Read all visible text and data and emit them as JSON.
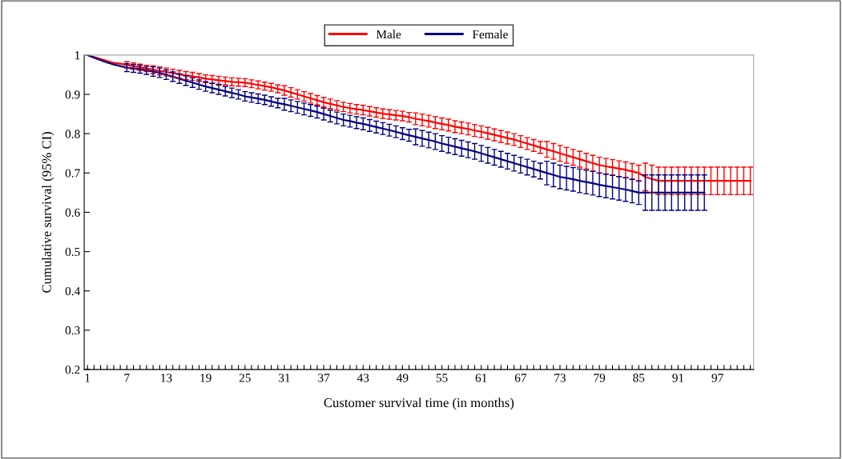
{
  "chart_data": {
    "type": "line",
    "xlabel": "Customer survival time (in months)",
    "ylabel": "Cumulative survival (95% CI)",
    "categories": [
      "1",
      null,
      null,
      null,
      null,
      null,
      "7",
      null,
      null,
      null,
      null,
      null,
      "13",
      null,
      null,
      null,
      null,
      null,
      "19",
      null,
      null,
      null,
      null,
      null,
      "25",
      null,
      null,
      null,
      null,
      null,
      "31",
      null,
      null,
      null,
      null,
      null,
      "37",
      null,
      null,
      null,
      null,
      null,
      "43",
      null,
      null,
      null,
      null,
      null,
      "49",
      null,
      null,
      null,
      null,
      null,
      "55",
      null,
      null,
      null,
      null,
      null,
      "61",
      null,
      null,
      null,
      null,
      null,
      "67",
      null,
      null,
      null,
      null,
      null,
      "73",
      null,
      null,
      null,
      null,
      null,
      "79",
      null,
      null,
      null,
      null,
      null,
      "85",
      null,
      null,
      null,
      null,
      null,
      "91",
      null,
      null,
      null,
      null,
      null,
      "97",
      null,
      null,
      null,
      null,
      null
    ],
    "series": [
      {
        "name": "Male",
        "color": "#ff0000",
        "values": [
          1.0,
          0.995,
          0.99,
          0.985,
          0.98,
          0.978,
          0.975,
          0.972,
          0.969,
          0.966,
          0.963,
          0.96,
          0.957,
          0.954,
          0.951,
          0.948,
          0.946,
          0.943,
          0.94,
          0.938,
          0.936,
          0.934,
          0.932,
          0.931,
          0.93,
          0.927,
          0.924,
          0.921,
          0.918,
          0.914,
          0.91,
          0.905,
          0.9,
          0.895,
          0.89,
          0.885,
          0.88,
          0.876,
          0.872,
          0.868,
          0.865,
          0.862,
          0.86,
          0.857,
          0.854,
          0.851,
          0.849,
          0.847,
          0.845,
          0.842,
          0.838,
          0.835,
          0.832,
          0.828,
          0.825,
          0.822,
          0.818,
          0.815,
          0.812,
          0.808,
          0.805,
          0.801,
          0.797,
          0.793,
          0.789,
          0.785,
          0.78,
          0.775,
          0.77,
          0.765,
          0.76,
          0.755,
          0.75,
          0.745,
          0.74,
          0.735,
          0.73,
          0.725,
          0.72,
          0.717,
          0.714,
          0.711,
          0.708,
          0.704,
          0.7,
          0.69,
          0.685,
          0.68,
          0.68,
          0.68,
          0.68,
          0.68,
          0.68,
          0.68,
          0.68,
          0.68,
          0.68,
          0.68,
          0.68,
          0.68,
          0.68,
          0.68
        ],
        "errors": [
          null,
          null,
          null,
          null,
          null,
          null,
          0.008,
          0.008,
          0.008,
          0.008,
          0.01,
          0.01,
          0.01,
          0.01,
          0.01,
          0.01,
          0.01,
          0.01,
          0.01,
          0.01,
          0.01,
          0.01,
          0.01,
          0.01,
          0.01,
          0.01,
          0.01,
          0.01,
          0.01,
          0.01,
          0.012,
          0.012,
          0.012,
          0.012,
          0.012,
          0.012,
          0.012,
          0.012,
          0.012,
          0.012,
          0.012,
          0.012,
          0.012,
          0.012,
          0.012,
          0.012,
          0.012,
          0.012,
          0.012,
          0.012,
          0.015,
          0.015,
          0.015,
          0.015,
          0.015,
          0.015,
          0.015,
          0.015,
          0.015,
          0.015,
          0.015,
          0.015,
          0.015,
          0.015,
          0.015,
          0.015,
          0.015,
          0.015,
          0.015,
          0.015,
          0.02,
          0.02,
          0.02,
          0.02,
          0.02,
          0.02,
          0.02,
          0.02,
          0.02,
          0.02,
          0.02,
          0.02,
          0.02,
          0.02,
          0.02,
          0.035,
          0.035,
          0.035,
          0.035,
          0.035,
          0.035,
          0.035,
          0.035,
          0.035,
          0.035,
          0.035,
          0.035,
          0.035,
          0.035,
          0.035,
          0.035,
          0.035
        ]
      },
      {
        "name": "Female",
        "color": "#000080",
        "values": [
          1.0,
          0.993,
          0.987,
          0.981,
          0.976,
          0.972,
          0.968,
          0.966,
          0.964,
          0.961,
          0.958,
          0.955,
          0.95,
          0.945,
          0.94,
          0.935,
          0.93,
          0.925,
          0.92,
          0.916,
          0.912,
          0.908,
          0.904,
          0.9,
          0.895,
          0.892,
          0.889,
          0.886,
          0.882,
          0.878,
          0.875,
          0.871,
          0.867,
          0.863,
          0.859,
          0.855,
          0.85,
          0.845,
          0.84,
          0.835,
          0.832,
          0.828,
          0.825,
          0.821,
          0.817,
          0.813,
          0.809,
          0.805,
          0.8,
          0.796,
          0.792,
          0.788,
          0.784,
          0.78,
          0.775,
          0.771,
          0.767,
          0.763,
          0.759,
          0.755,
          0.75,
          0.745,
          0.74,
          0.735,
          0.73,
          0.725,
          0.72,
          0.715,
          0.71,
          0.705,
          0.7,
          0.695,
          0.69,
          0.687,
          0.684,
          0.68,
          0.677,
          0.674,
          0.67,
          0.667,
          0.664,
          0.661,
          0.658,
          0.654,
          0.65,
          0.65,
          0.65,
          0.65,
          0.65,
          0.65,
          0.65,
          0.65,
          0.65,
          0.65,
          0.65,
          null,
          null,
          null,
          null,
          null,
          null,
          null
        ],
        "errors": [
          null,
          null,
          null,
          null,
          null,
          null,
          0.01,
          0.01,
          0.01,
          0.01,
          0.012,
          0.012,
          0.012,
          0.012,
          0.012,
          0.012,
          0.012,
          0.012,
          0.012,
          0.012,
          0.012,
          0.012,
          0.012,
          0.012,
          0.012,
          0.012,
          0.012,
          0.012,
          0.012,
          0.012,
          0.015,
          0.015,
          0.015,
          0.015,
          0.015,
          0.015,
          0.015,
          0.015,
          0.015,
          0.015,
          0.015,
          0.015,
          0.015,
          0.015,
          0.015,
          0.015,
          0.015,
          0.015,
          0.015,
          0.015,
          0.02,
          0.02,
          0.02,
          0.02,
          0.02,
          0.02,
          0.02,
          0.02,
          0.02,
          0.02,
          0.02,
          0.02,
          0.02,
          0.02,
          0.02,
          0.02,
          0.02,
          0.02,
          0.02,
          0.02,
          0.03,
          0.03,
          0.03,
          0.03,
          0.03,
          0.03,
          0.03,
          0.03,
          0.03,
          0.03,
          0.03,
          0.03,
          0.03,
          0.03,
          0.03,
          0.045,
          0.045,
          0.045,
          0.045,
          0.045,
          0.045,
          0.045,
          0.045,
          0.045,
          0.045,
          null,
          null,
          null,
          null,
          null,
          null,
          null
        ]
      }
    ],
    "ylim": [
      0.2,
      1
    ],
    "yticks": [
      0.2,
      0.3,
      0.4,
      0.5,
      0.6,
      0.7,
      0.8,
      0.9,
      1
    ],
    "grid": false,
    "legend": "top"
  }
}
